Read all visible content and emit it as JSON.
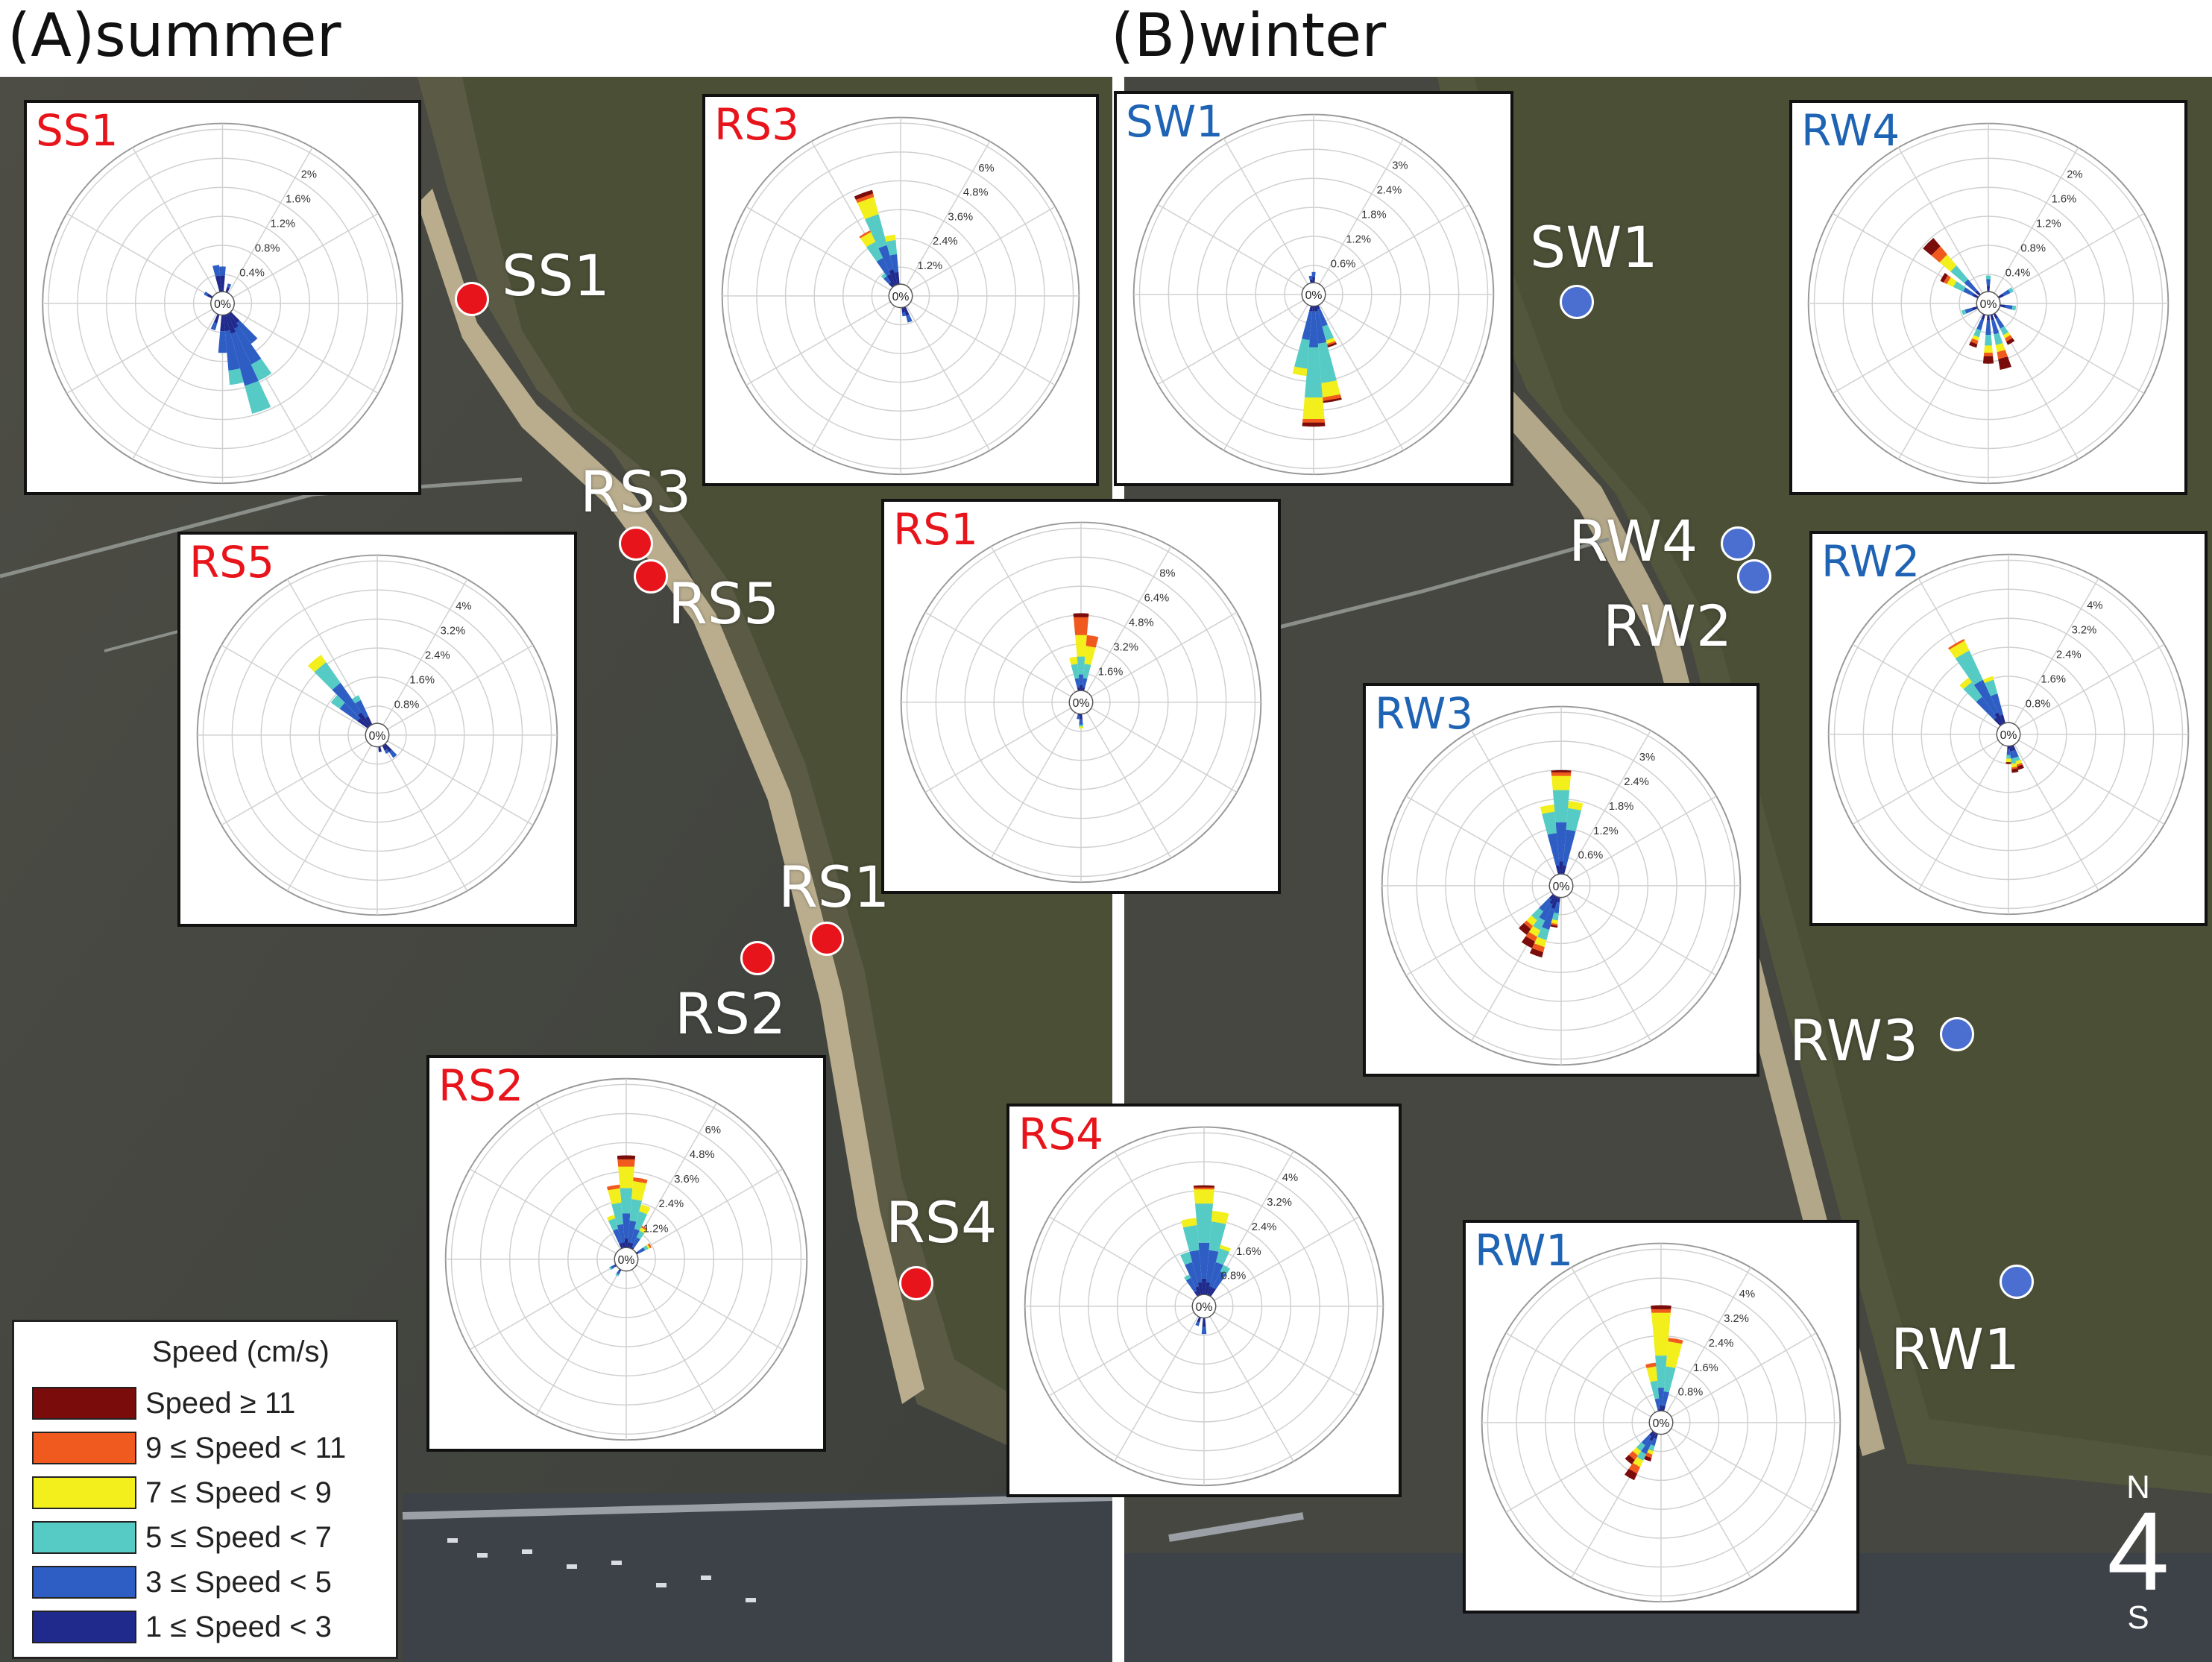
{
  "panels": {
    "summer": {
      "title": "(A)summer",
      "accent": "#e8141b"
    },
    "winter": {
      "title": "(B)winter",
      "accent": "#1f63b4"
    }
  },
  "stations": {
    "SS1": "SS1",
    "RS3": "RS3",
    "RS5": "RS5",
    "RS1": "RS1",
    "RS2": "RS2",
    "RS4": "RS4",
    "SW1": "SW1",
    "RW4": "RW4",
    "RW2": "RW2",
    "RW3": "RW3",
    "RW1": "RW1"
  },
  "insets": {
    "SS1": {
      "title": "SS1",
      "rings": [
        "0.4%",
        "0.8%",
        "1.2%",
        "1.6%",
        "2%"
      ],
      "center": "0%"
    },
    "RS3": {
      "title": "RS3",
      "rings": [
        "1.2%",
        "2.4%",
        "3.6%",
        "4.8%",
        "6%"
      ],
      "center": "0%"
    },
    "RS5": {
      "title": "RS5",
      "rings": [
        "0.8%",
        "1.6%",
        "2.4%",
        "3.2%",
        "4%"
      ],
      "center": "0%"
    },
    "RS1": {
      "title": "RS1",
      "rings": [
        "1.6%",
        "3.2%",
        "4.8%",
        "6.4%",
        "8%"
      ],
      "center": "0%"
    },
    "RS2": {
      "title": "RS2",
      "rings": [
        "1.2%",
        "2.4%",
        "3.6%",
        "4.8%",
        "6%"
      ],
      "center": "0%"
    },
    "RS4": {
      "title": "RS4",
      "rings": [
        "0.8%",
        "1.6%",
        "2.4%",
        "3.2%",
        "4%"
      ],
      "center": "0%"
    },
    "SW1": {
      "title": "SW1",
      "rings": [
        "0.6%",
        "1.2%",
        "1.8%",
        "2.4%",
        "3%"
      ],
      "center": "0%"
    },
    "RW4": {
      "title": "RW4",
      "rings": [
        "0.4%",
        "0.8%",
        "1.2%",
        "1.6%",
        "2%"
      ],
      "center": "0%"
    },
    "RW2": {
      "title": "RW2",
      "rings": [
        "0.8%",
        "1.6%",
        "2.4%",
        "3.2%",
        "4%"
      ],
      "center": "0%"
    },
    "RW3": {
      "title": "RW3",
      "rings": [
        "0.6%",
        "1.2%",
        "1.8%",
        "2.4%",
        "3%"
      ],
      "center": "0%"
    },
    "RW1": {
      "title": "RW1",
      "rings": [
        "0.8%",
        "1.6%",
        "2.4%",
        "3.2%",
        "4%"
      ],
      "center": "0%"
    }
  },
  "legend": {
    "title": "Speed (cm/s)",
    "items": [
      {
        "label": "Speed ≥ 11",
        "color": "#7a0c0c"
      },
      {
        "label": "9 ≤ Speed < 11",
        "color": "#f05a1e"
      },
      {
        "label": "7 ≤ Speed < 9",
        "color": "#f2ef1c"
      },
      {
        "label": "5 ≤ Speed < 7",
        "color": "#56cbc6"
      },
      {
        "label": "3 ≤ Speed < 5",
        "color": "#2e5ec4"
      },
      {
        "label": "1 ≤ Speed < 3",
        "color": "#1f2a8c"
      }
    ]
  },
  "compass": {
    "north": "N",
    "south": "S"
  },
  "chart_data": [
    {
      "type": "windrose",
      "station": "SS1",
      "max_pct": 2,
      "directions_deg": [
        140,
        150,
        160,
        170,
        180,
        190,
        200,
        210,
        220,
        30,
        40,
        330,
        340,
        350,
        0,
        10
      ],
      "dominant_toward": "SSE"
    },
    {
      "type": "windrose",
      "station": "RS3",
      "max_pct": 6,
      "dominant_toward": "NNW"
    },
    {
      "type": "windrose",
      "station": "RS5",
      "max_pct": 4,
      "dominant_toward": "NW"
    },
    {
      "type": "windrose",
      "station": "RS1",
      "max_pct": 8,
      "dominant_toward": "N"
    },
    {
      "type": "windrose",
      "station": "RS2",
      "max_pct": 6,
      "dominant_toward": "N"
    },
    {
      "type": "windrose",
      "station": "RS4",
      "max_pct": 4,
      "dominant_toward": "N"
    },
    {
      "type": "windrose",
      "station": "SW1",
      "max_pct": 3,
      "dominant_toward": "S"
    },
    {
      "type": "windrose",
      "station": "RW4",
      "max_pct": 2,
      "dominant_toward": "NW/SSE"
    },
    {
      "type": "windrose",
      "station": "RW2",
      "max_pct": 4,
      "dominant_toward": "NNW"
    },
    {
      "type": "windrose",
      "station": "RW3",
      "max_pct": 3,
      "dominant_toward": "N/SW"
    },
    {
      "type": "windrose",
      "station": "RW1",
      "max_pct": 4,
      "dominant_toward": "N/SW"
    }
  ]
}
